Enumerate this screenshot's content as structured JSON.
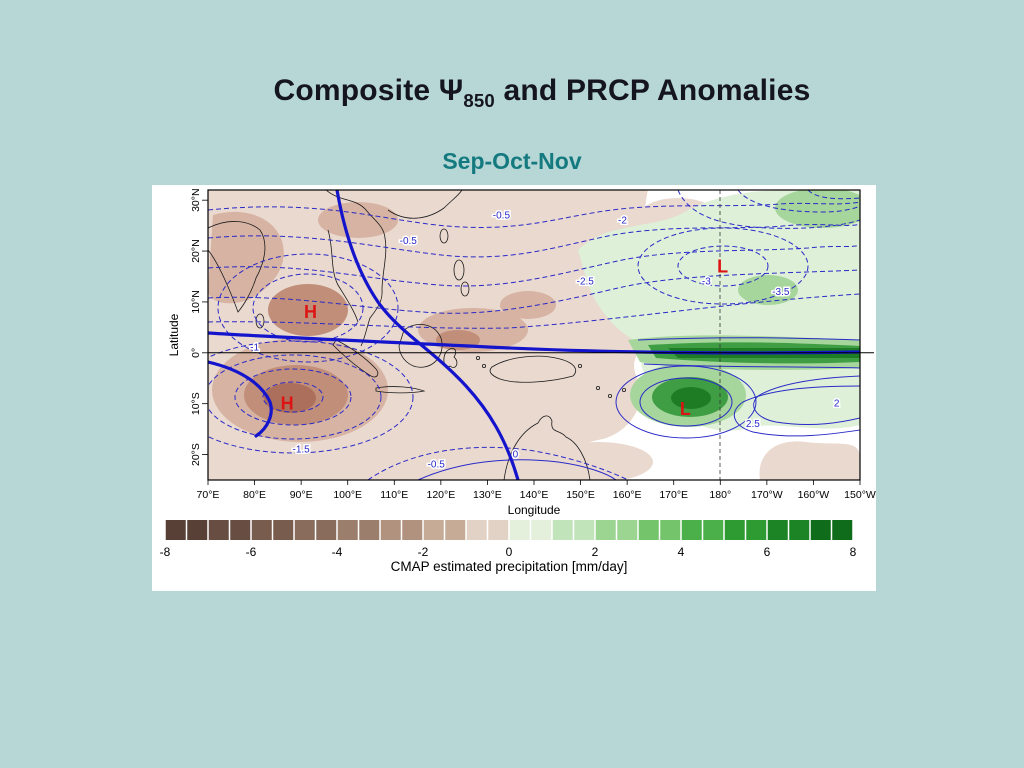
{
  "slide": {
    "background_color": "#b6d7d5",
    "title": {
      "prefix": "Composite Ψ",
      "subscript": "850",
      "suffix": " and PRCP Anomalies"
    },
    "subtitle": "Sep-Oct-Nov"
  },
  "chart_data": {
    "type": "heatmap",
    "subtype": "filled-contour precipitation anomaly map with 850hPa streamfunction contours",
    "season": "Sep-Oct-Nov",
    "xlabel": "Longitude",
    "ylabel": "Latitude",
    "x_range_deg_east": [
      70,
      210
    ],
    "y_range_deg_north": [
      -25,
      32
    ],
    "x_ticks": [
      {
        "label": "70°E",
        "lon": 70
      },
      {
        "label": "80°E",
        "lon": 80
      },
      {
        "label": "90°E",
        "lon": 90
      },
      {
        "label": "100°E",
        "lon": 100
      },
      {
        "label": "110°E",
        "lon": 110
      },
      {
        "label": "120°E",
        "lon": 120
      },
      {
        "label": "130°E",
        "lon": 130
      },
      {
        "label": "140°E",
        "lon": 140
      },
      {
        "label": "150°E",
        "lon": 150
      },
      {
        "label": "160°E",
        "lon": 160
      },
      {
        "label": "170°E",
        "lon": 170
      },
      {
        "label": "180°",
        "lon": 180
      },
      {
        "label": "170°W",
        "lon": 190
      },
      {
        "label": "160°W",
        "lon": 200
      },
      {
        "label": "150°W",
        "lon": 210
      }
    ],
    "y_ticks": [
      {
        "label": "20°S",
        "lat": -20
      },
      {
        "label": "10°S",
        "lat": -10
      },
      {
        "label": "0°",
        "lat": 0
      },
      {
        "label": "10°N",
        "lat": 10
      },
      {
        "label": "20°N",
        "lat": 20
      },
      {
        "label": "30°N",
        "lat": 30
      }
    ],
    "contour_color": "#2a2ac8",
    "thick_contour_color": "#1414cc",
    "annotation_color": "#dd1414",
    "annotations": [
      {
        "label": "H",
        "lon": 92,
        "lat": 8
      },
      {
        "label": "H",
        "lon": 87,
        "lat": -10
      },
      {
        "label": "L",
        "lon": 180.5,
        "lat": 17
      },
      {
        "label": "L",
        "lon": 172.5,
        "lat": -11
      }
    ],
    "contour_labels": [
      {
        "text": "-0.5",
        "lon": 113,
        "lat": 22
      },
      {
        "text": "-0.5",
        "lon": 133,
        "lat": 27
      },
      {
        "text": "-2",
        "lon": 159,
        "lat": 26
      },
      {
        "text": "-2.5",
        "lon": 151,
        "lat": 14
      },
      {
        "text": "-3",
        "lon": 177,
        "lat": 14
      },
      {
        "text": "-3.5",
        "lon": 193,
        "lat": 12
      },
      {
        "text": "2",
        "lon": 205,
        "lat": -10
      },
      {
        "text": "2.5",
        "lon": 187,
        "lat": -14
      },
      {
        "text": "0",
        "lon": 136,
        "lat": -20
      },
      {
        "text": "-0.5",
        "lon": 119,
        "lat": -22
      },
      {
        "text": "-1.5",
        "lon": 90,
        "lat": -19
      },
      {
        "text": "-1",
        "lon": 80,
        "lat": 1
      }
    ],
    "reference_lines": {
      "equator_lat": 0,
      "dateline_lon": 180
    },
    "colorbar": {
      "caption": "CMAP estimated precipitation [mm/day]",
      "min": -8,
      "max": 8,
      "tick_labels": [
        "-8",
        "-6",
        "-4",
        "-2",
        "0",
        "2",
        "4",
        "6",
        "8"
      ],
      "tick_values": [
        -8,
        -6,
        -4,
        -2,
        0,
        2,
        4,
        6,
        8
      ],
      "colors": [
        "#584036",
        "#684e42",
        "#785c4e",
        "#8a6c5c",
        "#9c7e6c",
        "#b0927e",
        "#c6ab97",
        "#e2d2c6",
        "#e4f0dc",
        "#c2e4ba",
        "#9cd492",
        "#74c46c",
        "#4cb04a",
        "#2e9a32",
        "#1c8424",
        "#0e6c1a"
      ]
    }
  }
}
